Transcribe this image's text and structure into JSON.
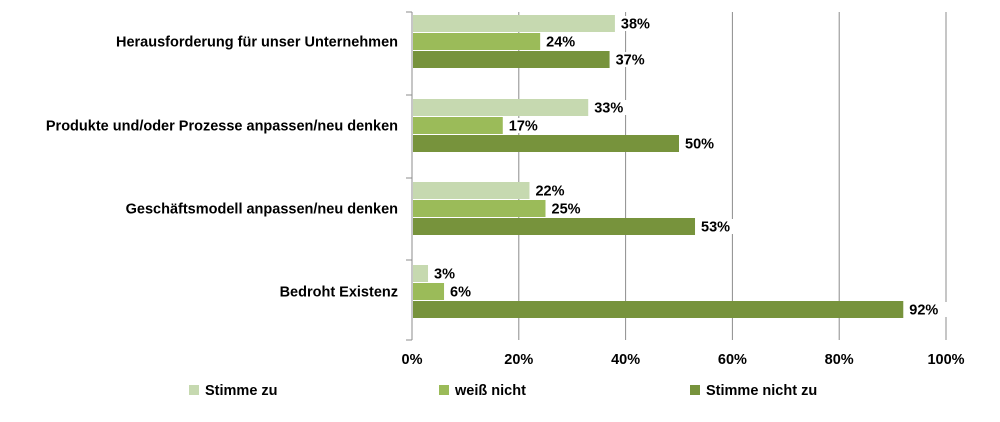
{
  "chart_data": {
    "type": "bar",
    "orientation": "horizontal",
    "categories": [
      "Herausforderung für unser Unternehmen",
      "Produkte und/oder Prozesse anpassen/neu denken",
      "Geschäftsmodell anpassen/neu denken",
      "Bedroht Existenz"
    ],
    "series": [
      {
        "name": "Stimme zu",
        "color": "#c6d9b0",
        "values": [
          38,
          33,
          22,
          3
        ],
        "labels": [
          "38%",
          "33%",
          "22%",
          "3%"
        ]
      },
      {
        "name": "weiß nicht",
        "color": "#9bbb59",
        "values": [
          24,
          17,
          25,
          6
        ],
        "labels": [
          "24%",
          "17%",
          "25%",
          "6%"
        ]
      },
      {
        "name": "Stimme nicht zu",
        "color": "#77933c",
        "values": [
          37,
          50,
          53,
          92
        ],
        "labels": [
          "37%",
          "50%",
          "53%",
          "92%"
        ]
      }
    ],
    "xlim": [
      0,
      100
    ],
    "xticks": [
      0,
      20,
      40,
      60,
      80,
      100
    ],
    "xtick_labels": [
      "0%",
      "20%",
      "40%",
      "60%",
      "80%",
      "100%"
    ],
    "grid": true,
    "legend": "bottom"
  }
}
